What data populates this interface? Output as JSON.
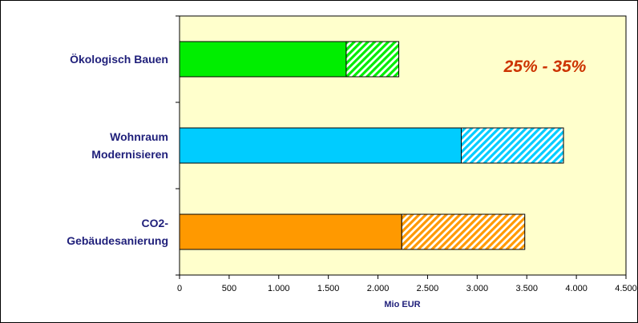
{
  "chart_data": {
    "type": "bar",
    "orientation": "horizontal",
    "stacked": true,
    "categories": [
      "Ökologisch Bauen",
      "Wohnraum Modernisieren",
      "CO2-Gebäudesanierung"
    ],
    "category_lines": [
      [
        "Ökologisch Bauen"
      ],
      [
        "Wohnraum",
        "Modernisieren"
      ],
      [
        "CO2-",
        "Gebäudesanierung"
      ]
    ],
    "series": [
      {
        "values": [
          1680,
          2840,
          2240
        ],
        "fill": "solid"
      },
      {
        "values": [
          530,
          1030,
          1240
        ],
        "fill": "hatched"
      }
    ],
    "colors": [
      "#00ee00",
      "#00ccff",
      "#ff9900"
    ],
    "xlabel": "Mio EUR",
    "xlim": [
      0,
      4500
    ],
    "xticks": [
      0,
      500,
      1000,
      1500,
      2000,
      2500,
      3000,
      3500,
      4000,
      4500
    ],
    "xtick_labels": [
      "0",
      "500",
      "1.000",
      "1.500",
      "2.000",
      "2.500",
      "3.000",
      "3.500",
      "4.000",
      "4.500"
    ],
    "annotation": {
      "text": "25% - 35%",
      "color": "#cc3300"
    },
    "plot_background": "#ffffcc",
    "grid": false,
    "legend": "none"
  }
}
